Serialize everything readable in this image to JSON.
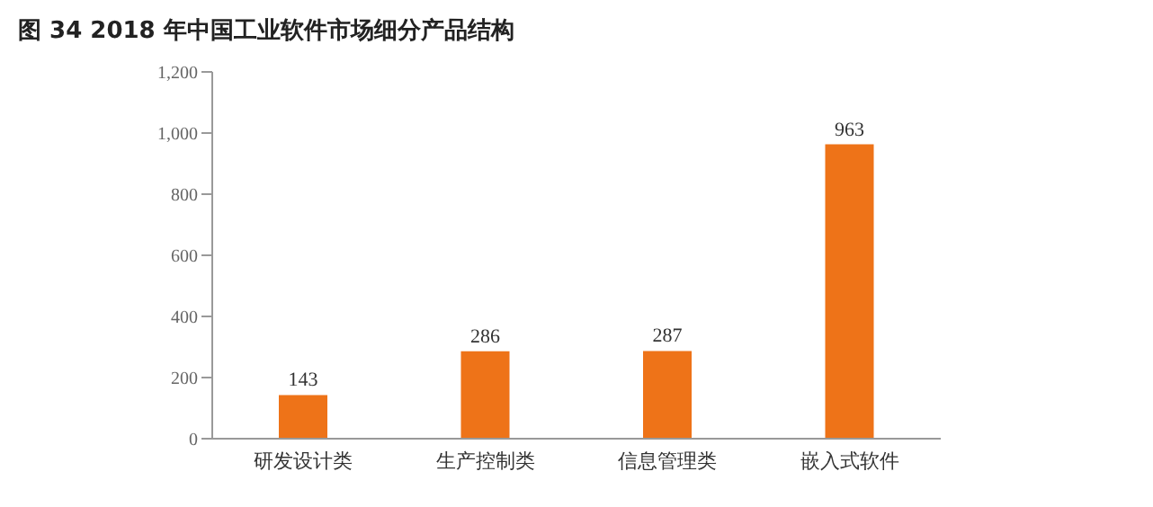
{
  "chart_data": {
    "type": "bar",
    "title": "图 34 2018 年中国工业软件市场细分产品结构",
    "categories": [
      "研发设计类",
      "生产控制类",
      "信息管理类",
      "嵌入式软件"
    ],
    "values": [
      143,
      286,
      287,
      963
    ],
    "color": "#ee7318",
    "ylim": [
      0,
      1200
    ],
    "yticks": [
      0,
      {
        "value": 200,
        "label": "200"
      },
      {
        "value": 400,
        "label": "400"
      },
      {
        "value": 600,
        "label": "600"
      },
      {
        "value": 800,
        "label": "800"
      },
      {
        "value": 1000,
        "label": "1,000"
      },
      {
        "value": 1200,
        "label": "1,200"
      }
    ],
    "data_labels": true,
    "grid": false,
    "legend": false
  }
}
